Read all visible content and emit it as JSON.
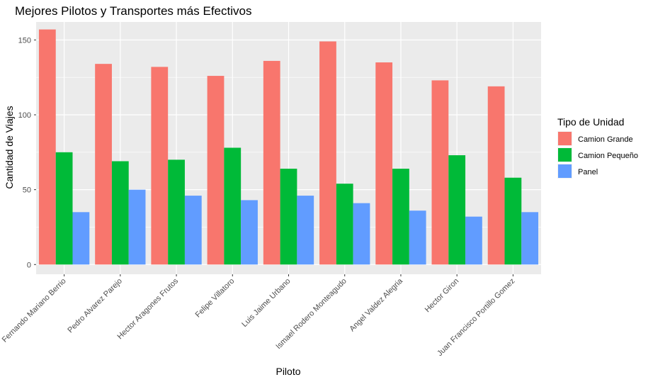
{
  "chart_data": {
    "type": "bar",
    "title": "Mejores Pilotos y Transportes más Efectivos",
    "xlabel": "Piloto",
    "ylabel": "Cantidad de Viajes",
    "ylim": [
      -6.5,
      162
    ],
    "yticks": [
      0,
      50,
      100,
      150
    ],
    "grid": true,
    "legend_title": "Tipo de Unidad",
    "legend_position": "right",
    "categories": [
      "Fernando Mariano Berrio",
      "Pedro Alvarez Parejo",
      "Hector Aragones Frutos",
      "Felipe Villatoro",
      "Luis Jaime Urbano",
      "Ismael Rodero Monteagudo",
      "Angel Valdez Alegria",
      "Hector Giron",
      "Juan Francisco Portillo Gomez"
    ],
    "series": [
      {
        "name": "Camion Grande",
        "color": "#F8766D",
        "values": [
          157,
          134,
          132,
          126,
          136,
          149,
          135,
          123,
          119
        ]
      },
      {
        "name": "Camion Pequeño",
        "color": "#00BA38",
        "values": [
          75,
          69,
          70,
          78,
          64,
          54,
          64,
          73,
          58
        ]
      },
      {
        "name": "Panel",
        "color": "#619CFF",
        "values": [
          35,
          50,
          46,
          43,
          46,
          41,
          36,
          32,
          35
        ]
      }
    ]
  }
}
